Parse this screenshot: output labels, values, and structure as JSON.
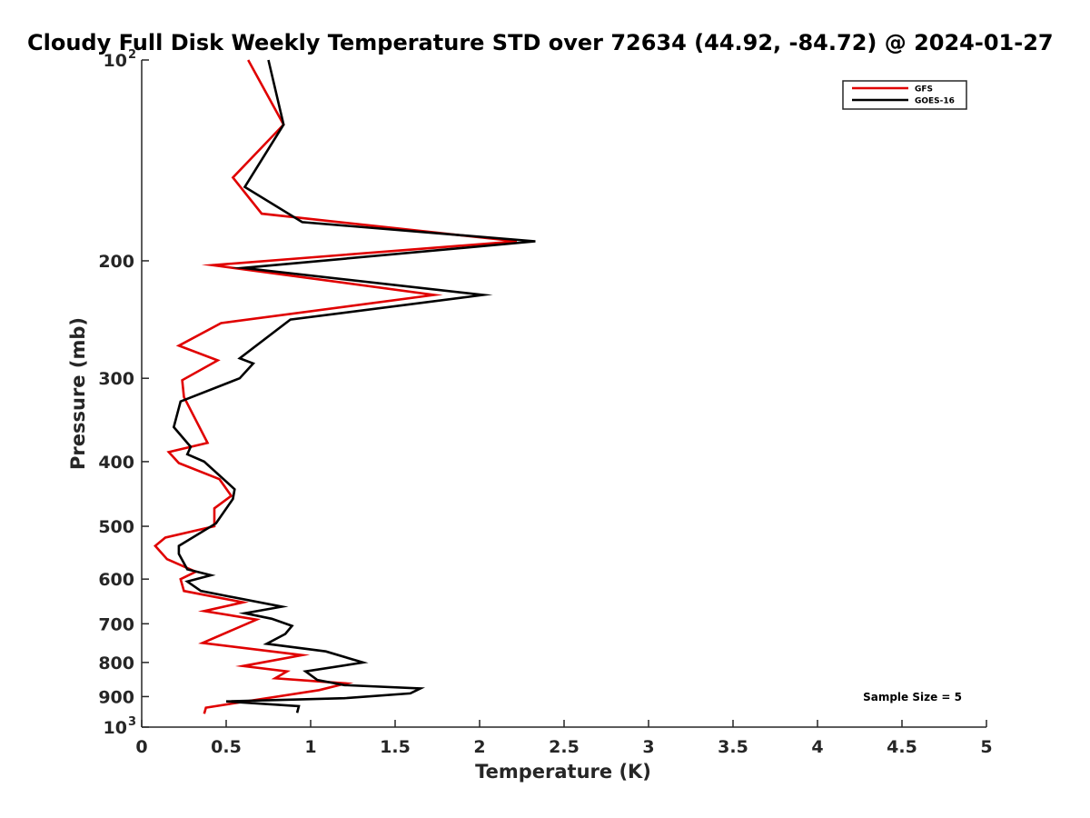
{
  "chart_data": {
    "type": "line",
    "title": "Cloudy Full Disk Weekly Temperature STD over 72634 (44.92, -84.72) @ 2024-01-27",
    "xlabel": "Temperature (K)",
    "ylabel": "Pressure (mb)",
    "xlim": [
      0,
      5
    ],
    "ylim": [
      100,
      1000
    ],
    "y_scale": "log",
    "y_reversed": true,
    "x_ticks": [
      "0",
      "0.5",
      "1",
      "1.5",
      "2",
      "2.5",
      "3",
      "3.5",
      "4",
      "4.5",
      "5"
    ],
    "y_ticks": [
      {
        "value": 100,
        "label": "10",
        "sup": "2"
      },
      {
        "value": 200,
        "label": "200",
        "sup": ""
      },
      {
        "value": 300,
        "label": "300",
        "sup": ""
      },
      {
        "value": 400,
        "label": "400",
        "sup": ""
      },
      {
        "value": 500,
        "label": "500",
        "sup": ""
      },
      {
        "value": 600,
        "label": "600",
        "sup": ""
      },
      {
        "value": 700,
        "label": "700",
        "sup": ""
      },
      {
        "value": 800,
        "label": "800",
        "sup": ""
      },
      {
        "value": 900,
        "label": "900",
        "sup": ""
      },
      {
        "value": 1000,
        "label": "10",
        "sup": "3"
      }
    ],
    "grid": false,
    "legend_position": "top-right",
    "annotation": "Sample Size = 5",
    "series": [
      {
        "name": "GFS",
        "color": "#e00000",
        "points": [
          [
            0.63,
            100
          ],
          [
            0.84,
            125
          ],
          [
            0.54,
            150
          ],
          [
            0.71,
            170
          ],
          [
            2.22,
            187
          ],
          [
            0.42,
            203
          ],
          [
            1.73,
            225
          ],
          [
            0.47,
            248
          ],
          [
            0.22,
            268
          ],
          [
            0.45,
            282
          ],
          [
            0.24,
            302
          ],
          [
            0.25,
            320
          ],
          [
            0.39,
            375
          ],
          [
            0.16,
            387
          ],
          [
            0.22,
            402
          ],
          [
            0.46,
            425
          ],
          [
            0.53,
            450
          ],
          [
            0.43,
            470
          ],
          [
            0.43,
            500
          ],
          [
            0.14,
            520
          ],
          [
            0.08,
            535
          ],
          [
            0.15,
            560
          ],
          [
            0.32,
            585
          ],
          [
            0.23,
            600
          ],
          [
            0.25,
            625
          ],
          [
            0.6,
            650
          ],
          [
            0.37,
            670
          ],
          [
            0.68,
            690
          ],
          [
            0.36,
            748
          ],
          [
            0.95,
            780
          ],
          [
            0.6,
            810
          ],
          [
            0.86,
            825
          ],
          [
            0.79,
            845
          ],
          [
            1.21,
            860
          ],
          [
            1.05,
            880
          ],
          [
            0.38,
            935
          ],
          [
            0.37,
            955
          ]
        ]
      },
      {
        "name": "GOES-16",
        "color": "#000000",
        "points": [
          [
            0.75,
            100
          ],
          [
            0.84,
            125
          ],
          [
            0.61,
            155
          ],
          [
            0.95,
            175
          ],
          [
            2.33,
            187
          ],
          [
            0.6,
            205
          ],
          [
            2.02,
            225
          ],
          [
            0.88,
            245
          ],
          [
            0.58,
            280
          ],
          [
            0.66,
            285
          ],
          [
            0.58,
            300
          ],
          [
            0.23,
            325
          ],
          [
            0.19,
            355
          ],
          [
            0.29,
            380
          ],
          [
            0.27,
            390
          ],
          [
            0.37,
            400
          ],
          [
            0.55,
            440
          ],
          [
            0.54,
            455
          ],
          [
            0.44,
            495
          ],
          [
            0.22,
            535
          ],
          [
            0.22,
            550
          ],
          [
            0.27,
            580
          ],
          [
            0.41,
            592
          ],
          [
            0.27,
            605
          ],
          [
            0.35,
            625
          ],
          [
            0.83,
            660
          ],
          [
            0.61,
            675
          ],
          [
            0.77,
            688
          ],
          [
            0.89,
            705
          ],
          [
            0.85,
            725
          ],
          [
            0.74,
            750
          ],
          [
            1.09,
            770
          ],
          [
            1.31,
            800
          ],
          [
            0.97,
            825
          ],
          [
            1.04,
            850
          ],
          [
            1.2,
            865
          ],
          [
            1.65,
            875
          ],
          [
            1.59,
            890
          ],
          [
            1.2,
            905
          ],
          [
            0.5,
            915
          ],
          [
            0.93,
            930
          ],
          [
            0.92,
            952
          ]
        ]
      }
    ]
  }
}
